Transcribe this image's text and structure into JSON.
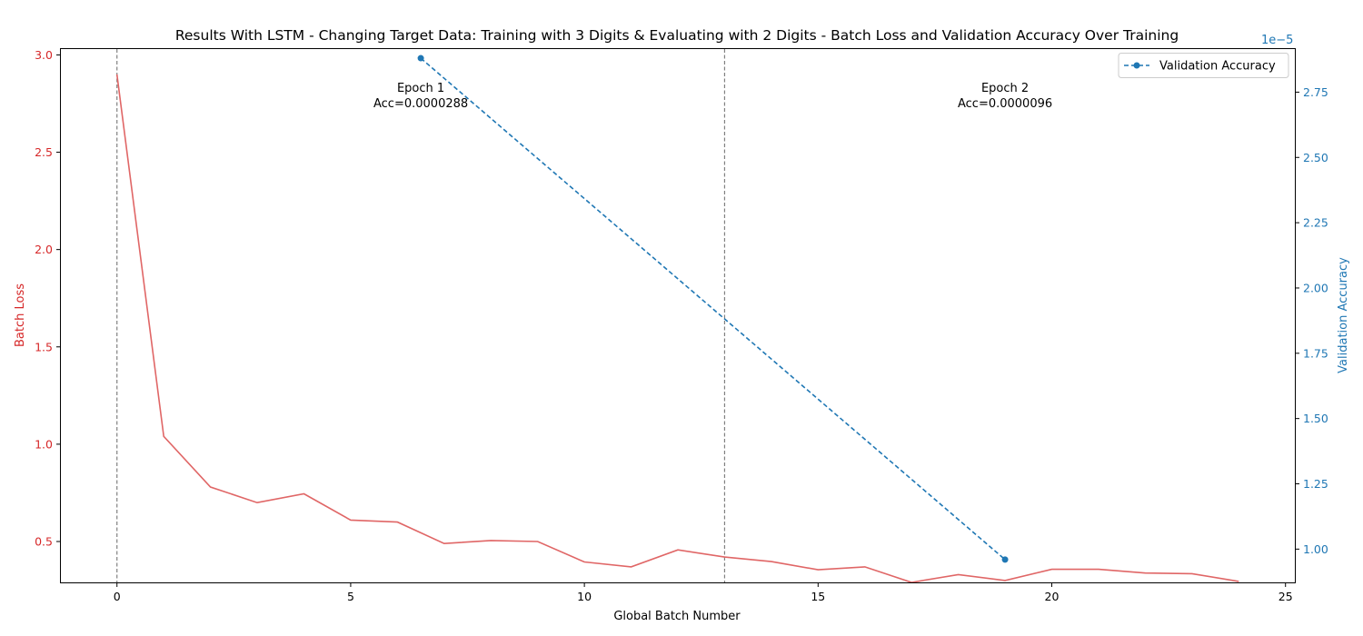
{
  "chart_data": {
    "type": "line",
    "title": "Results With LSTM - Changing Target Data: Training with 3 Digits & Evaluating with 2 Digits - Batch Loss and Validation Accuracy Over Training",
    "xlabel": "Global Batch Number",
    "ylabel_left": "Batch Loss",
    "ylabel_right": "Validation Accuracy",
    "right_axis_multiplier": "1e−5",
    "xlim": [
      -1.2,
      25.2
    ],
    "ylim_left": [
      0.29,
      3.03
    ],
    "ylim_right": [
      8.725e-06,
      2.915e-05
    ],
    "x_ticks": [
      0,
      5,
      10,
      15,
      20,
      25
    ],
    "y_ticks_left": [
      0.5,
      1.0,
      1.5,
      2.0,
      2.5,
      3.0
    ],
    "y_ticks_right": [
      1e-05,
      1.25e-05,
      1.5e-05,
      1.75e-05,
      2e-05,
      2.25e-05,
      2.5e-05,
      2.75e-05
    ],
    "y_ticks_right_labels": [
      "1.00",
      "1.25",
      "1.50",
      "1.75",
      "2.00",
      "2.25",
      "2.50",
      "2.75"
    ],
    "colors": {
      "loss": "#e06666",
      "accuracy": "#1f77b4",
      "left_axis": "#d62728",
      "right_axis": "#1f77b4",
      "epoch_line": "#808080"
    },
    "loss_series": {
      "x": [
        0,
        1,
        2,
        3,
        4,
        5,
        6,
        7,
        8,
        9,
        10,
        11,
        12,
        13,
        14,
        15,
        16,
        17,
        18,
        19,
        20,
        21,
        22,
        23,
        24
      ],
      "values": [
        2.9,
        1.04,
        0.78,
        0.7,
        0.745,
        0.61,
        0.6,
        0.49,
        0.505,
        0.5,
        0.395,
        0.37,
        0.457,
        0.42,
        0.397,
        0.355,
        0.37,
        0.29,
        0.33,
        0.3,
        0.357,
        0.357,
        0.338,
        0.335,
        0.295
      ]
    },
    "accuracy_series": {
      "name": "Validation Accuracy",
      "x": [
        6.5,
        19
      ],
      "values": [
        2.88e-05,
        9.6e-06
      ]
    },
    "epoch_lines": [
      0,
      13
    ],
    "annotations": [
      {
        "x": 6.5,
        "line1": "Epoch 1",
        "line2": "Acc=0.0000288"
      },
      {
        "x": 19,
        "line1": "Epoch 2",
        "line2": "Acc=0.0000096"
      }
    ],
    "legend_position": "top-right",
    "grid": false
  }
}
